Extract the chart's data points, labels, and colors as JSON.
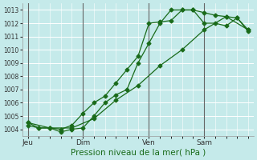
{
  "title": "",
  "xlabel": "Pression niveau de la mer( hPa )",
  "bg_color": "#c5eaea",
  "grid_color": "#ffffff",
  "line_color": "#1a6b1a",
  "marker_color": "#1a6b1a",
  "ylim": [
    1003.5,
    1013.5
  ],
  "yticks": [
    1004,
    1005,
    1006,
    1007,
    1008,
    1009,
    1010,
    1011,
    1012,
    1013
  ],
  "day_labels": [
    "Jeu",
    "Dim",
    "Ven",
    "Sam"
  ],
  "day_positions": [
    0,
    30,
    66,
    96
  ],
  "xmax": 120,
  "series1_x": [
    0,
    6,
    12,
    18,
    24,
    30,
    36,
    42,
    48,
    54,
    60,
    66,
    72,
    78,
    84,
    90,
    96,
    102,
    108,
    114,
    120
  ],
  "series1_y": [
    1004.3,
    1004.1,
    1004.1,
    1004.0,
    1004.3,
    1005.2,
    1006.0,
    1006.5,
    1007.5,
    1008.5,
    1009.5,
    1012.0,
    1012.1,
    1012.2,
    1013.0,
    1013.0,
    1012.0,
    1012.0,
    1011.8,
    1012.4,
    1011.4
  ],
  "series2_x": [
    0,
    6,
    12,
    18,
    24,
    30,
    36,
    42,
    48,
    54,
    60,
    66,
    72,
    78,
    84,
    90,
    96,
    102,
    108,
    114,
    120
  ],
  "series2_y": [
    1004.5,
    1004.1,
    1004.1,
    1003.8,
    1004.0,
    1004.1,
    1005.0,
    1006.0,
    1006.6,
    1007.0,
    1009.0,
    1010.5,
    1012.0,
    1013.0,
    1013.0,
    1013.0,
    1012.8,
    1012.6,
    1012.5,
    1012.4,
    1011.5
  ],
  "series3_x": [
    0,
    12,
    24,
    36,
    48,
    60,
    72,
    84,
    96,
    108,
    120
  ],
  "series3_y": [
    1004.5,
    1004.1,
    1004.1,
    1004.8,
    1006.2,
    1007.3,
    1008.8,
    1010.0,
    1011.5,
    1012.5,
    1011.5
  ]
}
